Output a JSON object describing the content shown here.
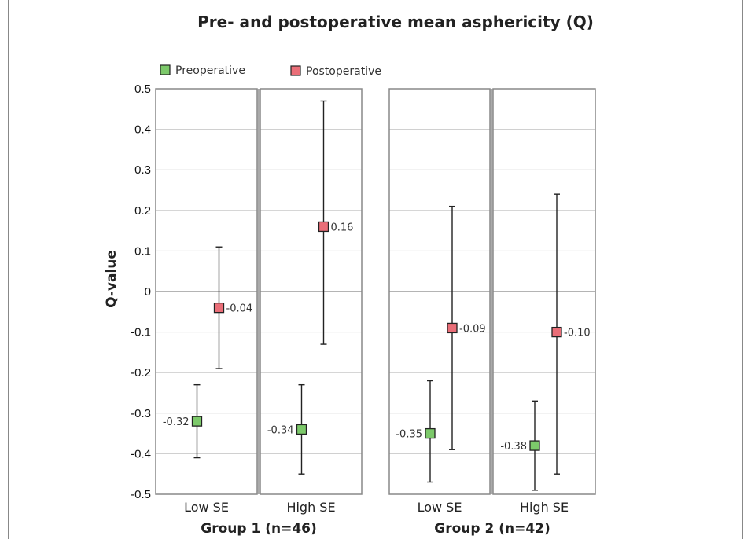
{
  "chart_data": {
    "type": "scatter",
    "title": "Pre- and postoperative mean asphericity (Q)",
    "ylabel": "Q-value",
    "xlabel": "",
    "ylim": [
      -0.5,
      0.5
    ],
    "yticks": [
      "0.5",
      "0.4",
      "0.3",
      "0.2",
      "0.1",
      "0",
      "-0.1",
      "-0.2",
      "-0.3",
      "-0.4",
      "-0.5"
    ],
    "legend_position": "top-left",
    "grid": true,
    "colors": {
      "Preoperative": "#7cc96a",
      "Postoperative": "#ea6e78"
    },
    "groups": [
      {
        "label": "Group 1 (n=46)",
        "categories": [
          {
            "label": "Low SE",
            "series": [
              {
                "name": "Preoperative",
                "mean": -0.32,
                "mean_label": "-0.32",
                "low": -0.41,
                "high": -0.23
              },
              {
                "name": "Postoperative",
                "mean": -0.04,
                "mean_label": "-0.04",
                "low": -0.19,
                "high": 0.11
              }
            ]
          },
          {
            "label": "High SE",
            "series": [
              {
                "name": "Preoperative",
                "mean": -0.34,
                "mean_label": "-0.34",
                "low": -0.45,
                "high": -0.23
              },
              {
                "name": "Postoperative",
                "mean": 0.16,
                "mean_label": "0.16",
                "low": -0.13,
                "high": 0.47
              }
            ]
          }
        ]
      },
      {
        "label": "Group 2 (n=42)",
        "categories": [
          {
            "label": "Low SE",
            "series": [
              {
                "name": "Preoperative",
                "mean": -0.35,
                "mean_label": "-0.35",
                "low": -0.47,
                "high": -0.22
              },
              {
                "name": "Postoperative",
                "mean": -0.09,
                "mean_label": "-0.09",
                "low": -0.39,
                "high": 0.21
              }
            ]
          },
          {
            "label": "High SE",
            "series": [
              {
                "name": "Preoperative",
                "mean": -0.38,
                "mean_label": "-0.38",
                "low": -0.49,
                "high": -0.27
              },
              {
                "name": "Postoperative",
                "mean": -0.1,
                "mean_label": "-0.10",
                "low": -0.45,
                "high": 0.24
              }
            ]
          }
        ]
      }
    ]
  }
}
